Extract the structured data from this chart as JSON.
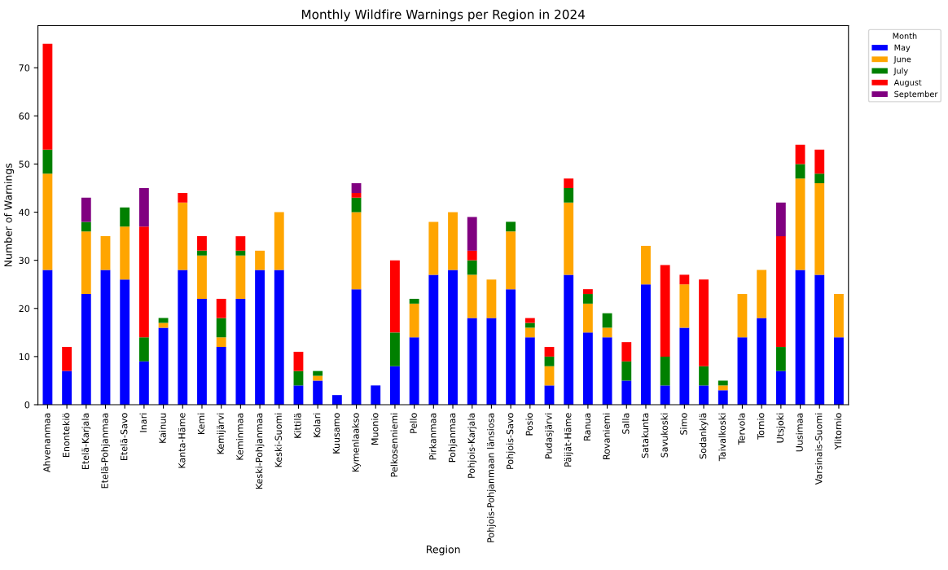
{
  "chart_data": {
    "type": "bar",
    "stacked": true,
    "title": "Monthly Wildfire Warnings per Region in 2024",
    "xlabel": "Region",
    "ylabel": "Number of Warnings",
    "legend_title": "Month",
    "legend": "top right",
    "grid": false,
    "categories": [
      "Ahvenanmaa",
      "Enontekiö",
      "Etelä-Karjala",
      "Etelä-Pohjanmaa",
      "Etelä-Savo",
      "Inari",
      "Kainuu",
      "Kanta-Häme",
      "Kemi",
      "Kemijärvi",
      "Keminmaa",
      "Keski-Pohjanmaa",
      "Keski-Suomi",
      "Kittilä",
      "Kolari",
      "Kuusamo",
      "Kymenlaakso",
      "Muonio",
      "Pelkosenniemi",
      "Pello",
      "Pirkanmaa",
      "Pohjanmaa",
      "Pohjois-Karjala",
      "Pohjois-Pohjanmaan länsiosa",
      "Pohjois-Savo",
      "Posio",
      "Pudasjärvi",
      "Päijät-Häme",
      "Ranua",
      "Rovaniemi",
      "Salla",
      "Satakunta",
      "Savukoski",
      "Simo",
      "Sodankylä",
      "Taivalkoski",
      "Tervola",
      "Tornio",
      "Utsjoki",
      "Uusimaa",
      "Varsinais-Suomi",
      "Ylitornio"
    ],
    "ylim": [
      0,
      78.75
    ],
    "yticks": [
      0,
      10,
      20,
      30,
      40,
      50,
      60,
      70
    ],
    "series": [
      {
        "name": "May",
        "color": "#0000ff",
        "values": [
          28,
          7,
          23,
          28,
          26,
          9,
          16,
          28,
          22,
          12,
          22,
          28,
          28,
          4,
          5,
          2,
          24,
          4,
          8,
          14,
          27,
          28,
          18,
          18,
          24,
          14,
          4,
          27,
          15,
          14,
          5,
          25,
          4,
          16,
          4,
          3,
          14,
          18,
          7,
          28,
          27,
          14
        ]
      },
      {
        "name": "June",
        "color": "#ffa500",
        "values": [
          20,
          0,
          13,
          7,
          11,
          0,
          1,
          14,
          9,
          2,
          9,
          4,
          12,
          0,
          1,
          0,
          16,
          0,
          0,
          7,
          11,
          12,
          9,
          8,
          12,
          2,
          4,
          15,
          6,
          2,
          0,
          8,
          0,
          9,
          0,
          1,
          9,
          10,
          0,
          19,
          19,
          9
        ]
      },
      {
        "name": "July",
        "color": "#008000",
        "values": [
          5,
          0,
          2,
          0,
          4,
          5,
          1,
          0,
          1,
          4,
          1,
          0,
          0,
          3,
          1,
          0,
          3,
          0,
          7,
          1,
          0,
          0,
          3,
          0,
          2,
          1,
          2,
          3,
          2,
          3,
          4,
          0,
          6,
          0,
          4,
          1,
          0,
          0,
          5,
          3,
          2,
          0
        ]
      },
      {
        "name": "August",
        "color": "#ff0000",
        "values": [
          22,
          5,
          0,
          0,
          0,
          23,
          0,
          2,
          3,
          4,
          3,
          0,
          0,
          4,
          0,
          0,
          1,
          0,
          15,
          0,
          0,
          0,
          2,
          0,
          0,
          1,
          2,
          2,
          1,
          0,
          4,
          0,
          19,
          2,
          18,
          0,
          0,
          0,
          23,
          4,
          5,
          0
        ]
      },
      {
        "name": "September",
        "color": "#800080",
        "values": [
          0,
          0,
          5,
          0,
          0,
          8,
          0,
          0,
          0,
          0,
          0,
          0,
          0,
          0,
          0,
          0,
          2,
          0,
          0,
          0,
          0,
          0,
          7,
          0,
          0,
          0,
          0,
          0,
          0,
          0,
          0,
          0,
          0,
          0,
          0,
          0,
          0,
          0,
          7,
          0,
          0,
          0
        ]
      }
    ]
  }
}
